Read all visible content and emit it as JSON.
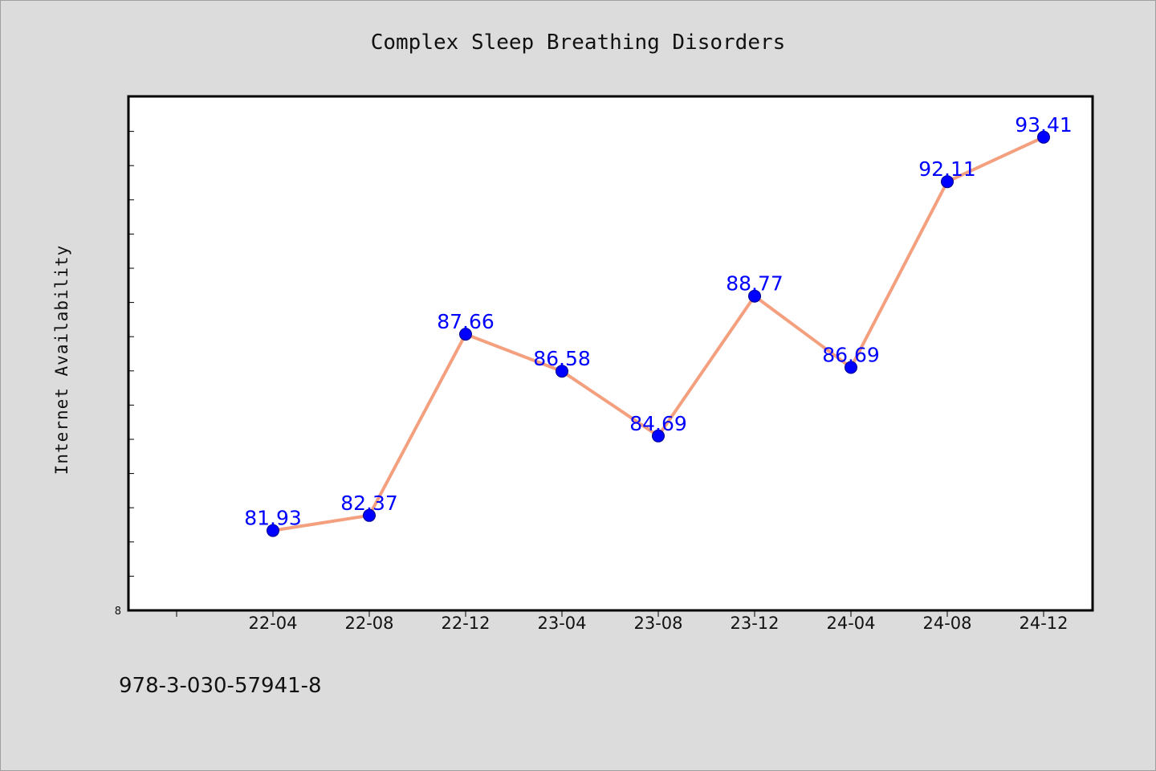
{
  "chart_data": {
    "type": "line",
    "title": "Complex Sleep Breathing Disorders",
    "ylabel": "Internet Availability",
    "xlabel": "",
    "categories": [
      "22-04",
      "22-08",
      "22-12",
      "23-04",
      "23-08",
      "23-12",
      "24-04",
      "24-08",
      "24-12"
    ],
    "series": [
      {
        "values": [
          81.93,
          82.37,
          87.66,
          86.58,
          84.69,
          88.77,
          86.69,
          92.11,
          93.41
        ]
      }
    ],
    "data_labels": [
      "81.93",
      "82.37",
      "87.66",
      "86.58",
      "84.69",
      "88.77",
      "86.69",
      "92.11",
      "93.41"
    ],
    "y_tick_label": "8",
    "ylim": [
      79.6,
      94.6
    ],
    "grid": false,
    "legend": "none",
    "colors": {
      "line": "#f4a07f",
      "marker": "#0000ff",
      "label": "#0000ff",
      "background": "#dcdcdc",
      "plot_bg": "#ffffff"
    }
  },
  "footer": {
    "text": "978-3-030-57941-8"
  }
}
